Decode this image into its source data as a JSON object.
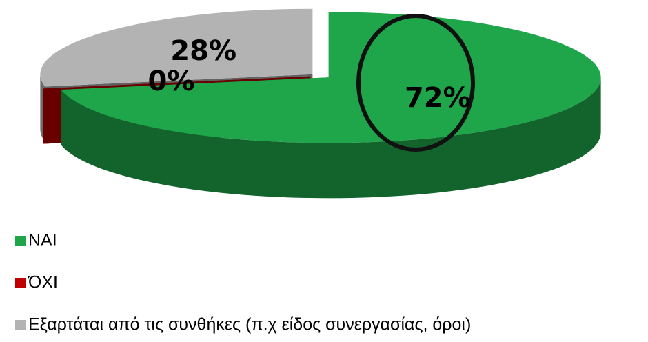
{
  "chart_data": {
    "type": "pie",
    "categories": [
      "ΝΑΙ",
      "ΌΧΙ",
      "Εξαρτάται από τις συνθήκες (π.χ είδος συνεργασίας, όροι)"
    ],
    "values": [
      72,
      0,
      28
    ],
    "value_labels": [
      "72%",
      "0%",
      "28%"
    ],
    "colors": [
      "#1fa64a",
      "#c00000",
      "#b3b3b3"
    ],
    "legend": "bottom-left"
  }
}
